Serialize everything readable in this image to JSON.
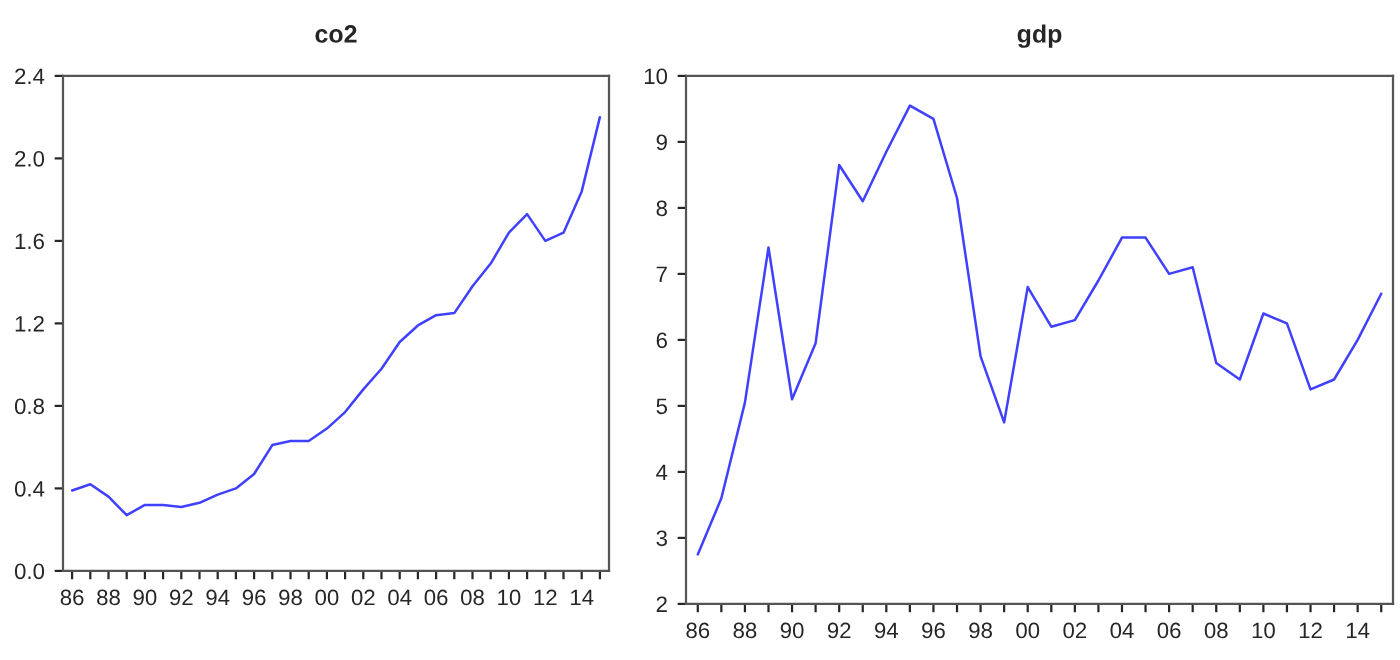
{
  "chart_data": [
    {
      "type": "line",
      "title": "co2",
      "categories": [
        "86",
        null,
        "88",
        null,
        "90",
        null,
        "92",
        null,
        "94",
        null,
        "96",
        null,
        "98",
        null,
        "00",
        null,
        "02",
        null,
        "04",
        null,
        "06",
        null,
        "08",
        null,
        "10",
        null,
        "12",
        null,
        "14",
        null
      ],
      "series": [
        {
          "color": "#4040ff",
          "values": [
            0.39,
            0.42,
            0.36,
            0.27,
            0.32,
            0.32,
            0.31,
            0.33,
            0.37,
            0.4,
            0.47,
            0.61,
            0.63,
            0.63,
            0.69,
            0.77,
            0.88,
            0.98,
            1.11,
            1.19,
            1.24,
            1.25,
            1.38,
            1.49,
            1.64,
            1.73,
            1.6,
            1.64,
            1.84,
            2.2
          ]
        }
      ],
      "ylim": [
        0,
        2.4
      ],
      "yticks": [
        {
          "value": 0,
          "label": "0.0"
        },
        {
          "value": 0.4,
          "label": "0.4"
        },
        {
          "value": 0.8,
          "label": "0.8"
        },
        {
          "value": 1.2,
          "label": "1.2"
        },
        {
          "value": 1.6,
          "label": "1.6"
        },
        {
          "value": 2.0,
          "label": "2.0"
        },
        {
          "value": 2.4,
          "label": "2.4"
        }
      ],
      "grid": false,
      "legend": false
    },
    {
      "type": "line",
      "title": "gdp",
      "categories": [
        "86",
        null,
        "88",
        null,
        "90",
        null,
        "92",
        null,
        "94",
        null,
        "96",
        null,
        "98",
        null,
        "00",
        null,
        "02",
        null,
        "04",
        null,
        "06",
        null,
        "08",
        null,
        "10",
        null,
        "12",
        null,
        "14",
        null
      ],
      "series": [
        {
          "color": "#4040ff",
          "values": [
            2.75,
            3.6,
            5.05,
            7.4,
            5.1,
            5.95,
            8.65,
            8.1,
            8.85,
            9.55,
            9.35,
            8.15,
            5.75,
            4.75,
            6.8,
            6.2,
            6.3,
            6.9,
            7.55,
            7.55,
            7.0,
            7.1,
            5.65,
            5.4,
            6.4,
            6.25,
            5.25,
            5.4,
            6.0,
            6.7
          ]
        }
      ],
      "ylim": [
        2,
        10
      ],
      "yticks": [
        2,
        3,
        4,
        5,
        6,
        7,
        8,
        9,
        10
      ],
      "grid": false,
      "legend": false
    }
  ]
}
